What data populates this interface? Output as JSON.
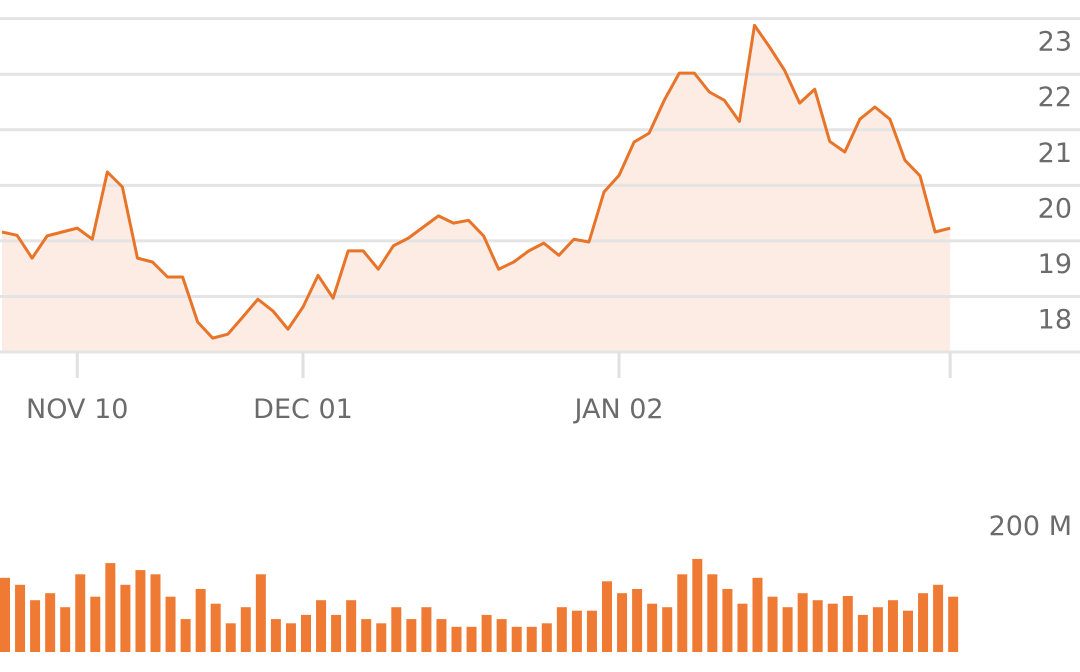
{
  "chart_data": [
    {
      "type": "line",
      "categories": [
        null,
        null,
        null,
        null,
        null,
        "NOV 10",
        null,
        null,
        null,
        null,
        null,
        null,
        null,
        null,
        null,
        null,
        null,
        null,
        null,
        null,
        "DEC 01",
        null,
        null,
        null,
        null,
        null,
        null,
        null,
        null,
        null,
        null,
        null,
        null,
        null,
        null,
        null,
        null,
        null,
        null,
        null,
        null,
        "JAN 02",
        null,
        null,
        null,
        null,
        null,
        null,
        null,
        null,
        null,
        null,
        null,
        null,
        null,
        null,
        null,
        null,
        null,
        null,
        null,
        null,
        null,
        null
      ],
      "values": [
        19.16,
        19.1,
        18.69,
        19.09,
        19.16,
        19.23,
        19.03,
        20.24,
        19.97,
        18.69,
        18.62,
        18.35,
        18.35,
        17.54,
        17.25,
        17.32,
        17.63,
        17.95,
        17.74,
        17.41,
        17.81,
        18.38,
        17.97,
        18.82,
        18.82,
        18.49,
        18.91,
        19.05,
        19.25,
        19.45,
        19.32,
        19.37,
        19.09,
        18.49,
        18.62,
        18.82,
        18.96,
        18.74,
        19.03,
        18.98,
        19.88,
        20.18,
        20.78,
        20.94,
        21.53,
        22.02,
        22.02,
        21.68,
        21.53,
        21.15,
        22.88,
        22.49,
        22.07,
        21.48,
        21.73,
        20.79,
        20.6,
        21.19,
        21.41,
        21.19,
        20.45,
        20.17,
        19.16,
        19.23
      ],
      "color": "#e8742a",
      "area_color": "#fcece4",
      "ylim": [
        17,
        23.3
      ],
      "yticks": [
        18,
        19,
        20,
        21,
        22,
        23
      ],
      "grid": true
    },
    {
      "type": "bar",
      "values": [
        106,
        96,
        74,
        84,
        64,
        111,
        79,
        127,
        96,
        117,
        111,
        79,
        47,
        90,
        69,
        41,
        64,
        111,
        47,
        41,
        53,
        74,
        53,
        74,
        47,
        41,
        64,
        47,
        64,
        47,
        36,
        36,
        53,
        47,
        36,
        36,
        41,
        64,
        59,
        59,
        101,
        84,
        90,
        69,
        64,
        111,
        133,
        111,
        90,
        69,
        106,
        79,
        64,
        84,
        74,
        69,
        80,
        53,
        64,
        74,
        59,
        84,
        96,
        79
      ],
      "color": "#ef7a33",
      "ylim": [
        0,
        200
      ],
      "yticks": [
        {
          "value": 200,
          "label": "200 M"
        }
      ]
    }
  ]
}
